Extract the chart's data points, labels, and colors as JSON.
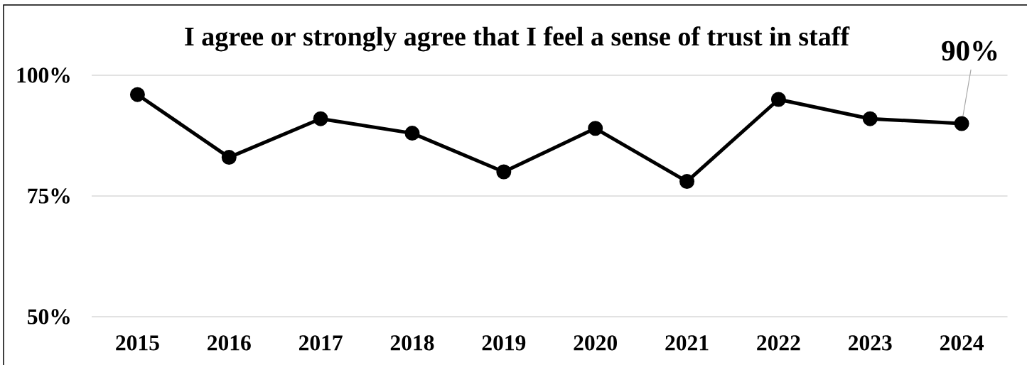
{
  "chart_data": {
    "type": "line",
    "title": "I agree or strongly agree that I feel a sense of trust in staff",
    "categories": [
      "2015",
      "2016",
      "2017",
      "2018",
      "2019",
      "2020",
      "2021",
      "2022",
      "2023",
      "2024"
    ],
    "values": [
      96,
      83,
      91,
      88,
      80,
      89,
      78,
      95,
      91,
      90
    ],
    "value_labels": [
      null,
      null,
      null,
      null,
      null,
      null,
      null,
      null,
      null,
      "90%"
    ],
    "color": "#000000",
    "ylim": [
      50,
      100
    ],
    "yticks": [
      {
        "value": 50,
        "label": "50%"
      },
      {
        "value": 75,
        "label": "75%"
      },
      {
        "value": 100,
        "label": "100%"
      }
    ],
    "grid": "y",
    "marker": "circle",
    "line_style": "solid"
  }
}
